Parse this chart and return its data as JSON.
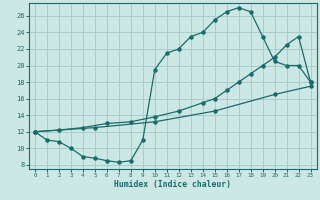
{
  "xlabel": "Humidex (Indice chaleur)",
  "bg_color": "#cce8e4",
  "grid_color": "#aaccca",
  "line_color": "#1a6b6b",
  "xlim": [
    -0.5,
    23.5
  ],
  "ylim": [
    7.5,
    27.5
  ],
  "xticks": [
    0,
    1,
    2,
    3,
    4,
    5,
    6,
    7,
    8,
    9,
    10,
    11,
    12,
    13,
    14,
    15,
    16,
    17,
    18,
    19,
    20,
    21,
    22,
    23
  ],
  "yticks": [
    8,
    10,
    12,
    14,
    16,
    18,
    20,
    22,
    24,
    26
  ],
  "curve1_x": [
    0,
    1,
    2,
    3,
    4,
    5,
    6,
    7,
    8,
    9,
    10,
    11,
    12,
    13,
    14,
    15,
    16,
    17,
    18,
    19,
    20,
    21,
    22,
    23
  ],
  "curve1_y": [
    12,
    11,
    10.8,
    10,
    9,
    8.8,
    8.5,
    8.3,
    8.5,
    11,
    19.5,
    21.5,
    22,
    23.5,
    24,
    25.5,
    26.5,
    27,
    26.5,
    23.5,
    20.5,
    20,
    20,
    18
  ],
  "curve2_x": [
    0,
    2,
    4,
    6,
    8,
    10,
    12,
    14,
    15,
    16,
    17,
    18,
    19,
    20,
    21,
    22,
    23
  ],
  "curve2_y": [
    12,
    12.2,
    12.5,
    13,
    13.2,
    13.8,
    14.5,
    15.5,
    16,
    17,
    18,
    19,
    20,
    21,
    22.5,
    23.5,
    18
  ],
  "curve3_x": [
    0,
    5,
    10,
    15,
    20,
    23
  ],
  "curve3_y": [
    12,
    12.5,
    13.2,
    14.5,
    16.5,
    17.5
  ]
}
